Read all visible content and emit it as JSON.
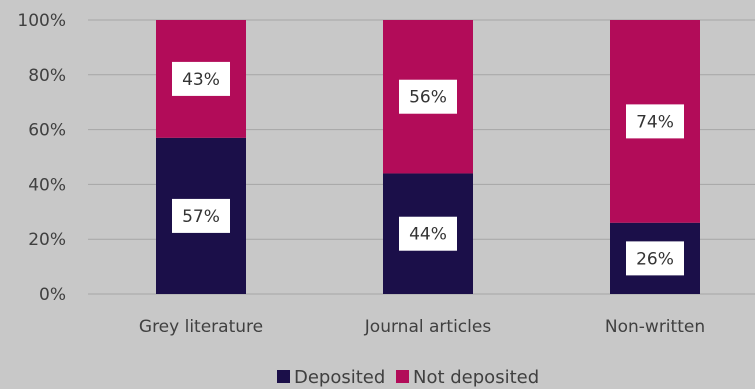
{
  "chart_data": {
    "type": "bar",
    "stacked": true,
    "categories": [
      "Grey literature",
      "Journal articles",
      "Non-written"
    ],
    "series": [
      {
        "name": "Deposited",
        "values": [
          57,
          44,
          26
        ],
        "labels": [
          "57%",
          "44%",
          "26%"
        ],
        "color": "#1b0f49"
      },
      {
        "name": "Not deposited",
        "values": [
          43,
          56,
          74
        ],
        "labels": [
          "43%",
          "56%",
          "74%"
        ],
        "color": "#b20c59"
      }
    ],
    "yticks": [
      "0%",
      "20%",
      "40%",
      "60%",
      "80%",
      "100%"
    ],
    "ylim": [
      0,
      100
    ],
    "grid": true,
    "legend_position": "bottom"
  }
}
